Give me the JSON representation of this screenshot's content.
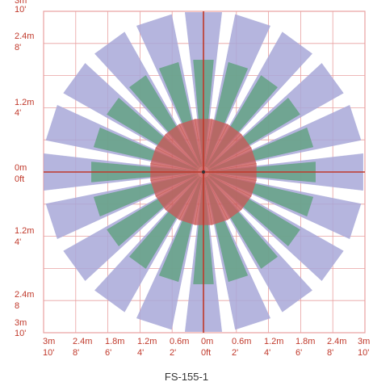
{
  "y_labels": [
    {
      "m": "3m",
      "ft": "10'"
    },
    {
      "m": "2.4m",
      "ft": "8'"
    },
    {
      "m": "1.2m",
      "ft": "4'"
    },
    {
      "m": "0m",
      "ft": "0ft"
    },
    {
      "m": "1.2m",
      "ft": "4'"
    },
    {
      "m": "2.4m",
      "ft": "8"
    },
    {
      "m": "3m",
      "ft": "10'"
    }
  ],
  "x_labels": [
    {
      "m": "3m",
      "ft": "10'"
    },
    {
      "m": "2.4m",
      "ft": "8'"
    },
    {
      "m": "1.8m",
      "ft": "6'"
    },
    {
      "m": "1.2m",
      "ft": "4'"
    },
    {
      "m": "0.6m",
      "ft": "2'"
    },
    {
      "m": "0m",
      "ft": "0ft"
    },
    {
      "m": "0.6m",
      "ft": "2'"
    },
    {
      "m": "1.2m",
      "ft": "4'"
    },
    {
      "m": "1.8m",
      "ft": "6'"
    },
    {
      "m": "2.4m",
      "ft": "8'"
    },
    {
      "m": "3m",
      "ft": "10'"
    }
  ],
  "model_name": "FS-155-1",
  "colors": {
    "grid": "#e8a0a0",
    "axis": "#c0392b",
    "label": "#c0392b",
    "zone_far": "#a8a8d8",
    "zone_mid": "#5aa078",
    "zone_near": "#c85a5a"
  },
  "zones": [
    {
      "name": "far",
      "rings": 20,
      "radius_m": 3.0
    },
    {
      "name": "mid",
      "rings": 20,
      "radius_m": 2.1
    },
    {
      "name": "near",
      "rings": 20,
      "radius_m": 1.0
    }
  ]
}
